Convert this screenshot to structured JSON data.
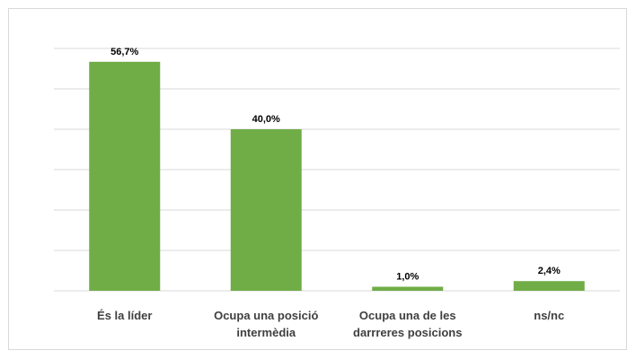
{
  "chart_data": {
    "type": "bar",
    "categories": [
      [
        "És la líder"
      ],
      [
        "Ocupa una posició",
        "intermèdia"
      ],
      [
        "Ocupa una de les",
        "darrreres posicions"
      ],
      [
        "ns/nc"
      ]
    ],
    "values": [
      56.7,
      40.0,
      1.0,
      2.4
    ],
    "value_labels": [
      "56,7%",
      "40,0%",
      "1,0%",
      "2,4%"
    ],
    "ylim": [
      0,
      60
    ],
    "grid": true,
    "bar_color": "#70ad47",
    "grid_color": "#d9d9d9"
  }
}
